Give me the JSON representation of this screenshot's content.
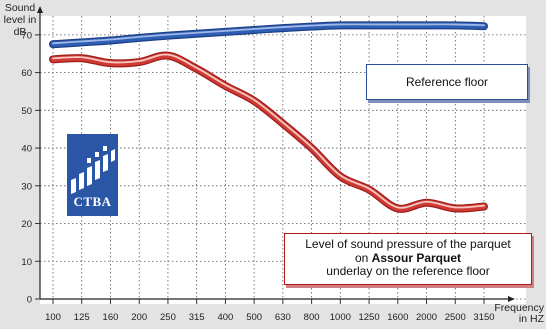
{
  "chart_data": {
    "type": "line",
    "ylabel": "Sound level in dB",
    "xlabel": "Frequency in HZ",
    "ylim": [
      0,
      75
    ],
    "y_ticks": [
      "0",
      "10",
      "20",
      "30",
      "40",
      "50",
      "60",
      "70"
    ],
    "categories": [
      "100",
      "125",
      "160",
      "200",
      "250",
      "315",
      "400",
      "500",
      "630",
      "800",
      "1000",
      "1250",
      "1600",
      "2000",
      "2500",
      "3150"
    ],
    "grid": true,
    "series": [
      {
        "name": "Reference floor",
        "color": "#2f5fb5",
        "values": [
          67.5,
          68.0,
          68.5,
          69.2,
          69.8,
          70.3,
          70.8,
          71.3,
          71.8,
          72.2,
          72.5,
          72.5,
          72.5,
          72.5,
          72.5,
          72.3
        ]
      },
      {
        "name": "Level of sound pressure of the parquet on Assour Parquet underlay on the reference floor",
        "color": "#d03a35",
        "values": [
          63.5,
          63.8,
          62.5,
          62.8,
          64.5,
          61.0,
          56.5,
          52.5,
          46.5,
          40.0,
          32.5,
          29.0,
          24.0,
          25.5,
          24.0,
          24.5
        ]
      }
    ]
  },
  "legend": {
    "reference": "Reference floor",
    "level_line1": "Level of sound pressure of the parquet",
    "level_line2_prefix": "on ",
    "level_line2_bold": "Assour Parquet",
    "level_line3": "underlay on the reference floor"
  },
  "logo": {
    "text": "CTBA",
    "color": "#2b56a6"
  }
}
